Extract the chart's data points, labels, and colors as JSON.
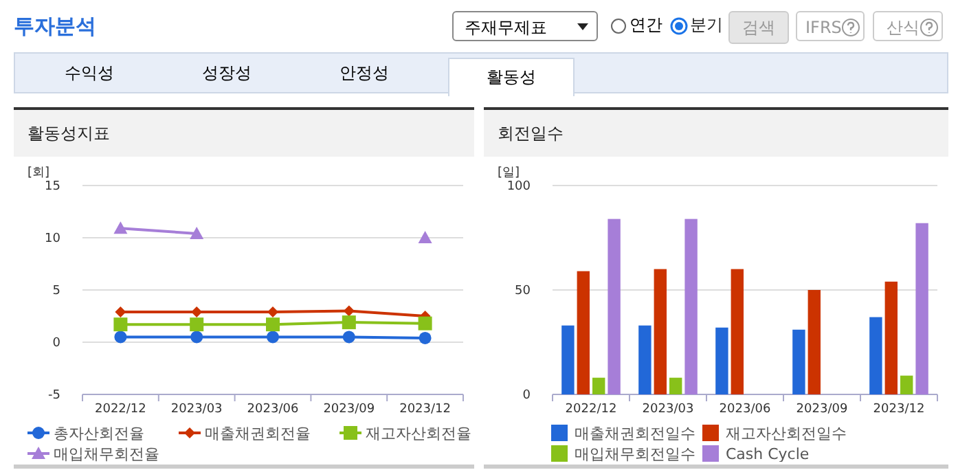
{
  "chart_data": [
    {
      "type": "other",
      "title": "투자분석",
      "annotations": [
        "주재무제표",
        "연간",
        "분기",
        "검색",
        "IFRS",
        "산식",
        "수익성",
        "성장성",
        "안정성",
        "활동성"
      ]
    },
    {
      "type": "line",
      "title": "활동성지표",
      "ylabel": "[회]",
      "categories": [
        "2022/12",
        "2023/03",
        "2023/06",
        "2023/09",
        "2023/12"
      ],
      "ylim": [
        -5,
        15
      ],
      "yticks": [
        -5,
        0,
        5,
        10,
        15
      ],
      "grid": "y",
      "legend": "bottom",
      "series": [
        {
          "name": "총자산회전율",
          "color": "#2268d8",
          "marker": "circle",
          "values": [
            0.5,
            0.5,
            0.5,
            0.5,
            0.4
          ]
        },
        {
          "name": "매출채권회전율",
          "color": "#cc3300",
          "marker": "diamond",
          "values": [
            2.9,
            2.9,
            2.9,
            3.0,
            2.5
          ]
        },
        {
          "name": "재고자산회전율",
          "color": "#88c11a",
          "marker": "square",
          "values": [
            1.7,
            1.7,
            1.7,
            1.9,
            1.8
          ]
        },
        {
          "name": "매입채무회전율",
          "color": "#a67ed8",
          "marker": "triangle",
          "values": [
            10.9,
            10.4,
            null,
            null,
            10.0
          ]
        }
      ]
    },
    {
      "type": "bar",
      "title": "회전일수",
      "ylabel": "[일]",
      "categories": [
        "2022/12",
        "2023/03",
        "2023/06",
        "2023/09",
        "2023/12"
      ],
      "ylim": [
        0,
        100
      ],
      "yticks": [
        0,
        50,
        100
      ],
      "grid": "y",
      "legend": "bottom",
      "series": [
        {
          "name": "매출채권회전일수",
          "color": "#2268d8",
          "values": [
            33,
            33,
            32,
            31,
            37
          ]
        },
        {
          "name": "재고자산회전일수",
          "color": "#cc3300",
          "values": [
            59,
            60,
            60,
            50,
            54
          ]
        },
        {
          "name": "매입채무회전일수",
          "color": "#88c11a",
          "values": [
            8,
            8,
            null,
            null,
            9
          ]
        },
        {
          "name": "Cash Cycle",
          "color": "#a67ed8",
          "values": [
            84,
            84,
            null,
            null,
            82
          ]
        }
      ]
    }
  ]
}
